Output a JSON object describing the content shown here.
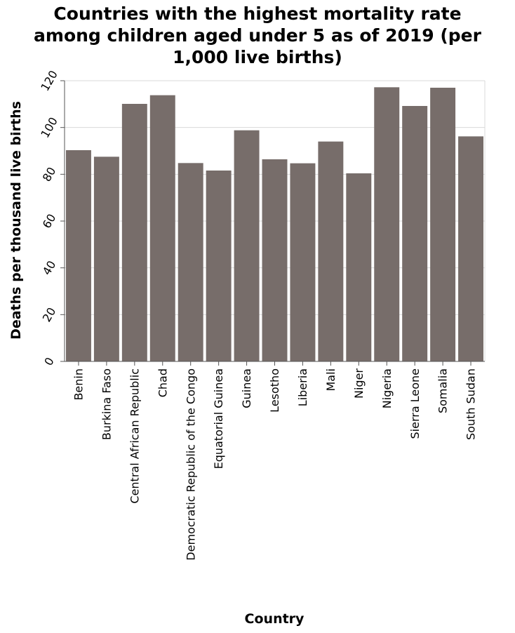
{
  "chart_data": {
    "type": "bar",
    "title_lines": [
      "Countries with the highest mortality rate",
      "among children aged under 5 as of 2019 (per",
      "1,000 live births)"
    ],
    "xlabel": "Country",
    "ylabel": "Deaths per thousand live births",
    "categories": [
      "Benin",
      "Burkina Faso",
      "Central African Republic",
      "Chad",
      "Democratic Republic of the Congo",
      "Equatorial Guinea",
      "Guinea",
      "Lesotho",
      "Liberia",
      "Mali",
      "Niger",
      "Nigeria",
      "Sierra Leone",
      "Somalia",
      "South Sudan"
    ],
    "values": [
      90.3,
      87.5,
      110.1,
      113.8,
      84.8,
      81.6,
      98.8,
      86.4,
      84.7,
      94.0,
      80.4,
      117.2,
      109.2,
      117.0,
      96.2
    ],
    "ylim": [
      0,
      120
    ],
    "yticks": [
      "0",
      "20",
      "40",
      "60",
      "80",
      "100",
      "120"
    ],
    "grid": true,
    "legend": "none",
    "colors": {
      "bar": "#776d6a",
      "grid": "#d9d9d9",
      "axis": "#555555"
    }
  }
}
